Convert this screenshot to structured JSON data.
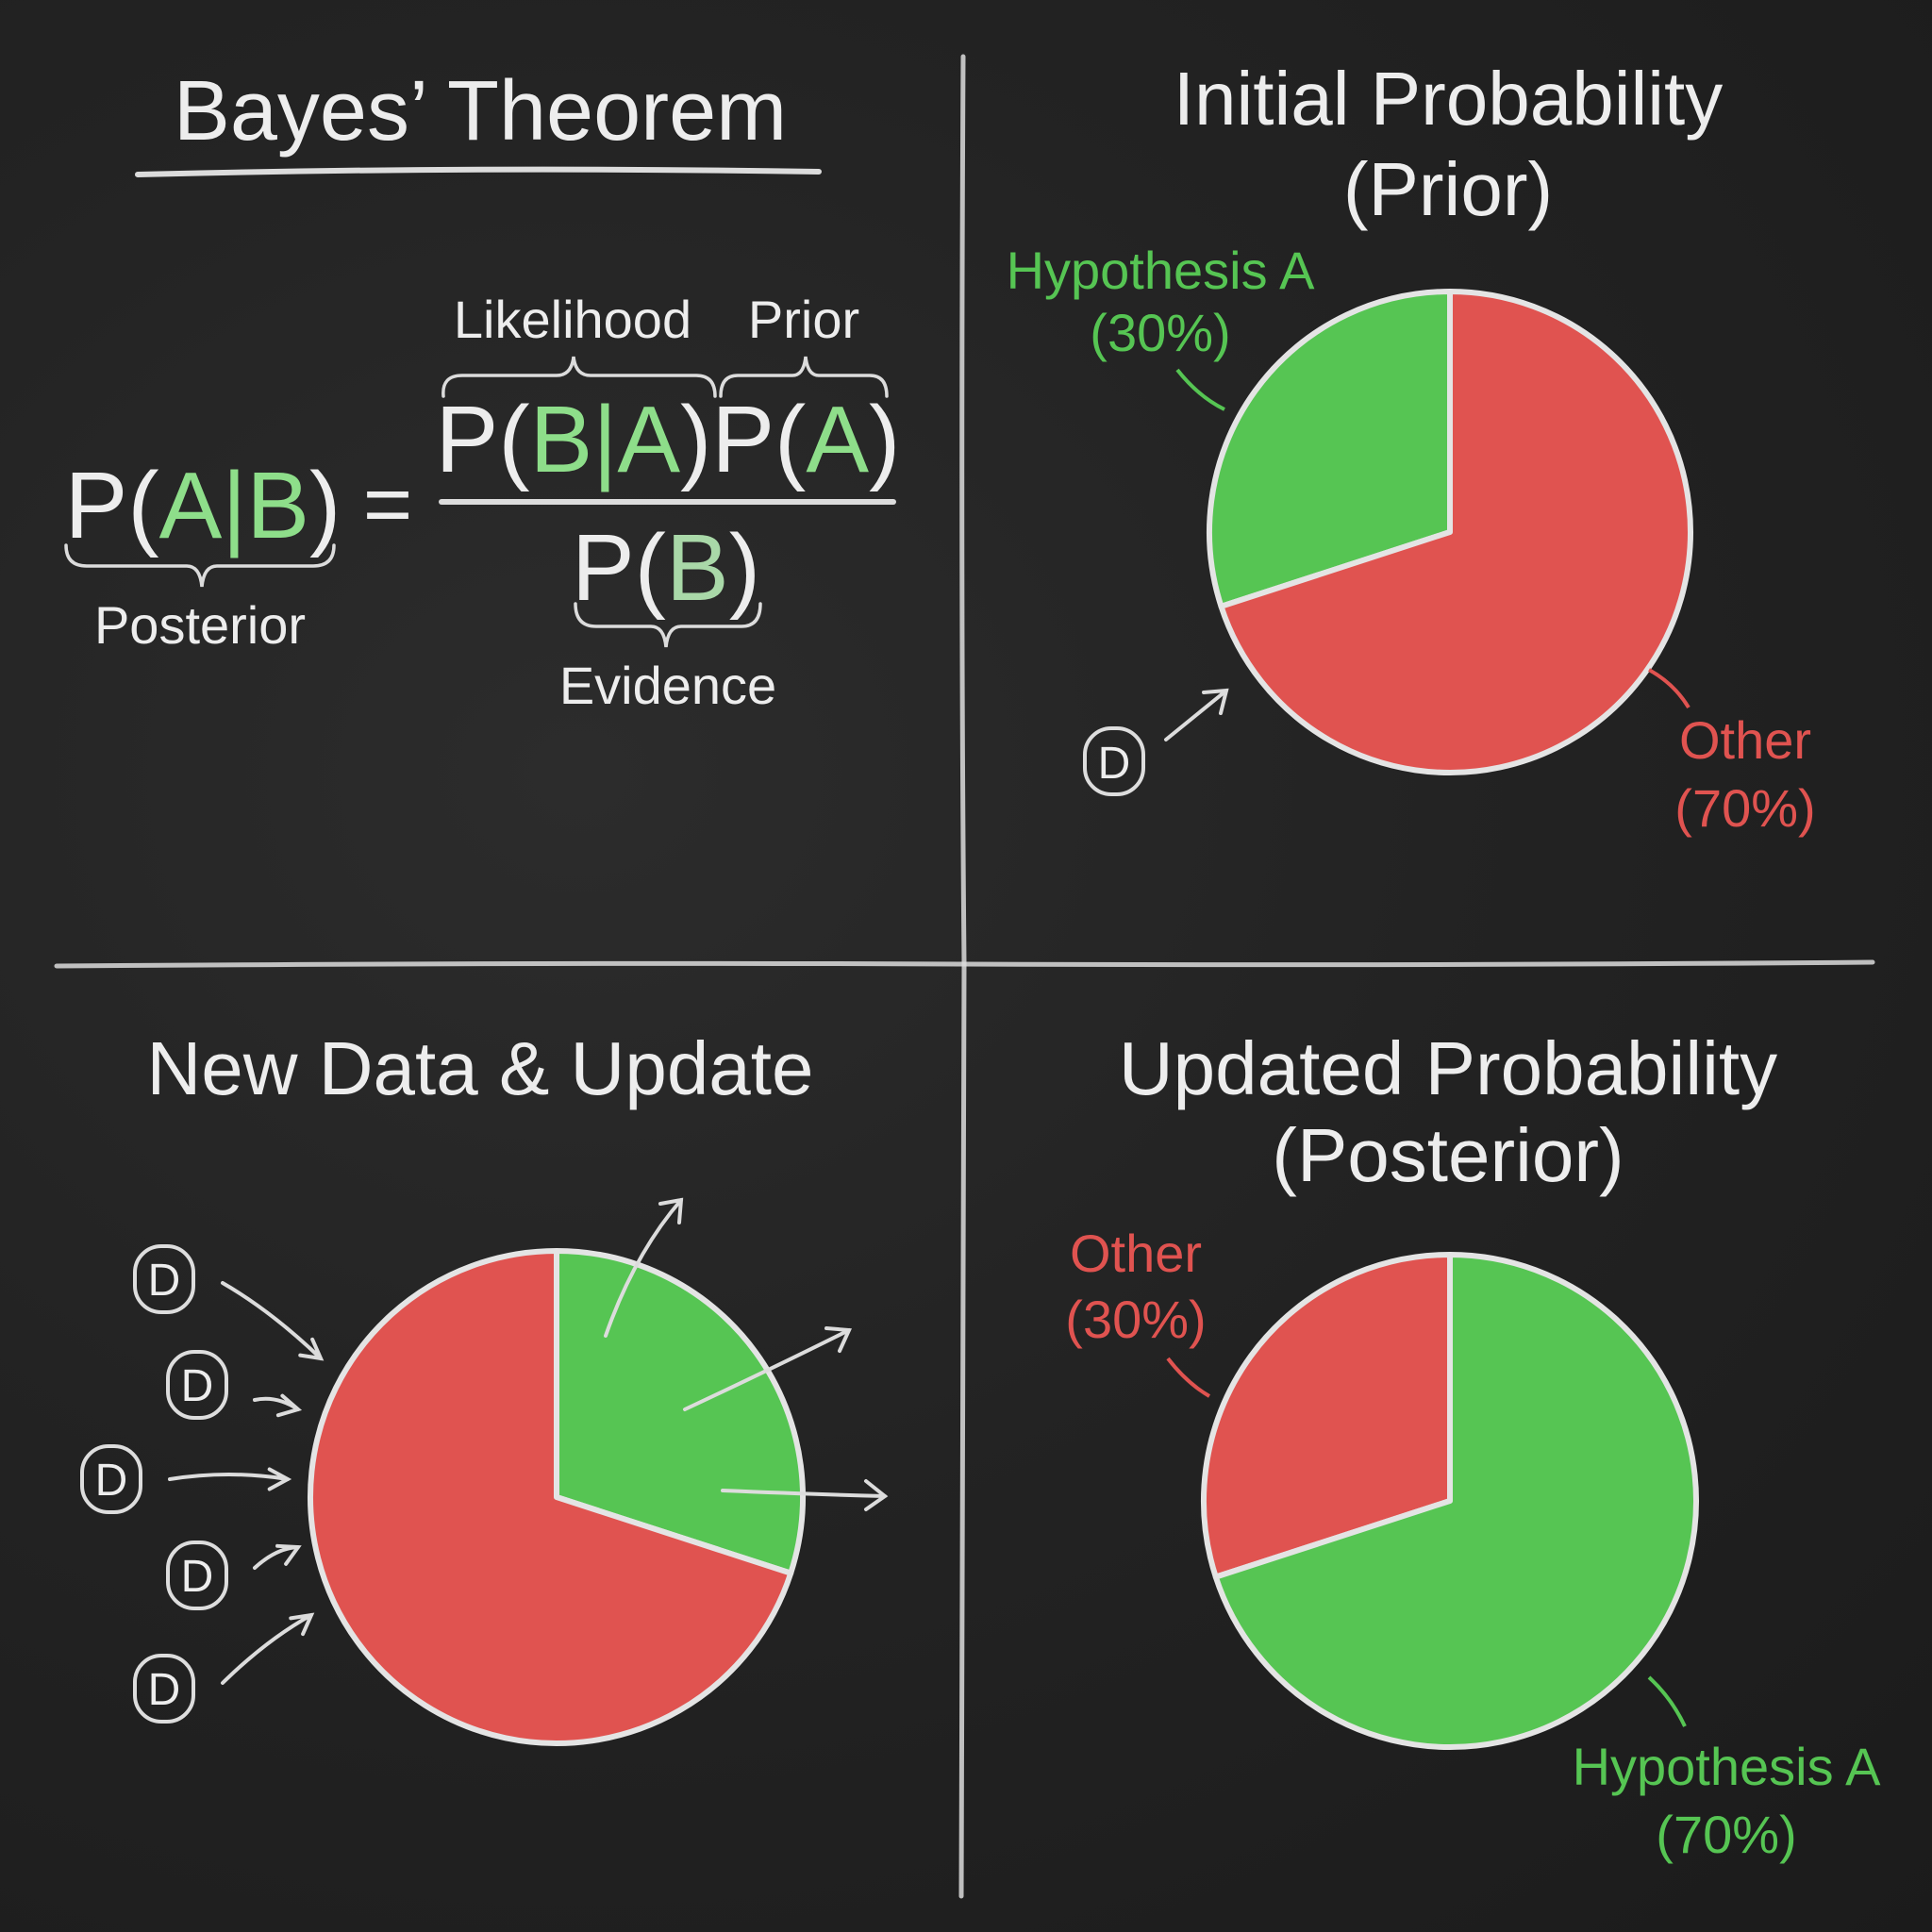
{
  "colors": {
    "chalk": "#ededed",
    "hypothesis_green": "#56c553",
    "other_red": "#e05350",
    "formula_green": "#8ede8a",
    "background": "#232323"
  },
  "formula": {
    "title": "Bayes’ Theorem",
    "lhs": [
      "P(",
      "A",
      "|",
      "B",
      ")"
    ],
    "equals": "=",
    "numerator": [
      "P(",
      "B",
      "|",
      "A",
      ")P(",
      "A",
      ")"
    ],
    "denominator": [
      "P(",
      "B",
      ")"
    ],
    "labels": {
      "likelihood": "Likelihood",
      "prior": "Prior",
      "posterior": "Posterior",
      "evidence": "Evidence"
    }
  },
  "prior_panel": {
    "title_line1": "Initial Probability",
    "title_line2": "(Prior)",
    "slices": [
      {
        "label": "Hypothesis A",
        "percent_label": "(30%)",
        "value": 30,
        "color": "#56c553"
      },
      {
        "label": "Other",
        "percent_label": "(70%)",
        "value": 70,
        "color": "#e05350"
      }
    ],
    "data_token": "D"
  },
  "update_panel": {
    "title": "New Data & Update",
    "slices": [
      {
        "value": 30,
        "color": "#56c553"
      },
      {
        "value": 70,
        "color": "#e05350"
      }
    ],
    "data_token": "D"
  },
  "posterior_panel": {
    "title_line1": "Updated Probability",
    "title_line2": "(Posterior)",
    "slices": [
      {
        "label": "Other",
        "percent_label": "(30%)",
        "value": 30,
        "color": "#e05350"
      },
      {
        "label": "Hypothesis A",
        "percent_label": "(70%)",
        "value": 70,
        "color": "#56c553"
      }
    ]
  }
}
